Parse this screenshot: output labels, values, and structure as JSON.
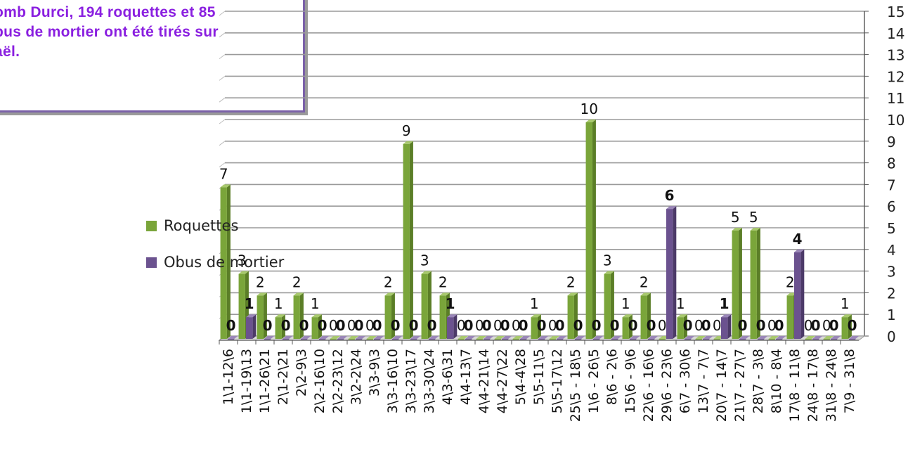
{
  "note": {
    "text": "omb Durci, 194 roquettes et 85\nbus de mortier ont été tirés sur\naël."
  },
  "colors": {
    "roquettes": "#7aa53a",
    "obus": "#6b528f",
    "grid": "#8c8c8c"
  },
  "chart_data": {
    "type": "bar",
    "title": "",
    "xlabel": "",
    "ylabel": "",
    "ylim": [
      0,
      15
    ],
    "yticks": [
      0,
      1,
      2,
      3,
      4,
      5,
      6,
      7,
      8,
      9,
      10,
      11,
      12,
      13,
      14,
      15
    ],
    "y_axis_side": "right",
    "grid": true,
    "legend_placement": "left",
    "categories": [
      "1\\1-12\\6",
      "1\\1-19\\13",
      "1\\1-26\\21",
      "2\\1-2\\21",
      "2\\2-9\\3",
      "2\\2-16\\10",
      "2\\2-23\\12",
      "3\\2-2\\24",
      "3\\3-9\\3",
      "3\\3-16\\10",
      "3\\3-23\\17",
      "3\\3-30\\24",
      "4\\3-6\\31",
      "4\\4-13\\7",
      "4\\4-21\\14",
      "4\\4-27\\22",
      "5\\4-4\\28",
      "5\\5-11\\5",
      "5\\5-17\\12",
      "25\\5 - 18\\5",
      "1\\6 - 26\\5",
      "8\\6 - 2\\6",
      "15\\6 - 9\\6",
      "22\\6 - 16\\6",
      "29\\6 - 23\\6",
      "6\\7 - 30\\6",
      "13\\7 - 7\\7",
      "20\\7 - 14\\7",
      "21\\7 - 27\\7",
      "28\\7 - 3\\8",
      "8\\10 - 8\\4",
      "17\\8 - 11\\8",
      "24\\8 - 17\\8",
      "31\\8 - 24\\8",
      "7\\9 - 31\\8"
    ],
    "series": [
      {
        "name": "Roquettes",
        "values": [
          7,
          3,
          2,
          1,
          2,
          1,
          0,
          0,
          0,
          2,
          9,
          3,
          2,
          0,
          0,
          0,
          0,
          1,
          0,
          2,
          10,
          3,
          1,
          2,
          0,
          1,
          0,
          0,
          5,
          5,
          0,
          2,
          0,
          0,
          1
        ]
      },
      {
        "name": "Obus de mortier",
        "values": [
          0,
          1,
          0,
          0,
          0,
          0,
          0,
          0,
          0,
          0,
          0,
          0,
          1,
          0,
          0,
          0,
          0,
          0,
          0,
          0,
          0,
          0,
          0,
          0,
          6,
          0,
          0,
          1,
          0,
          0,
          0,
          4,
          0,
          0,
          0
        ]
      }
    ],
    "data_labels": {
      "Roquettes": [
        "7",
        "3",
        "2",
        "1",
        "2",
        "1",
        "0",
        "0",
        "0",
        "2",
        "9",
        "3",
        "2",
        "0",
        "0",
        "0",
        "0",
        "1",
        "0",
        "2",
        "10",
        "3",
        "1",
        "2",
        "0",
        "1",
        "0",
        "0",
        "5",
        "5",
        "0",
        "2",
        "0",
        "0",
        "1"
      ],
      "Obus de mortier": [
        "0",
        "1",
        "0",
        "0",
        "0",
        "0",
        "0",
        "0",
        "0",
        "0",
        "0",
        "0",
        "1",
        "0",
        "0",
        "0",
        "0",
        "0",
        "0",
        "0",
        "0",
        "0",
        "0",
        "0",
        "6",
        "0",
        "0",
        "1",
        "0",
        "0",
        "0",
        "4",
        "0",
        "0",
        "0"
      ]
    }
  }
}
